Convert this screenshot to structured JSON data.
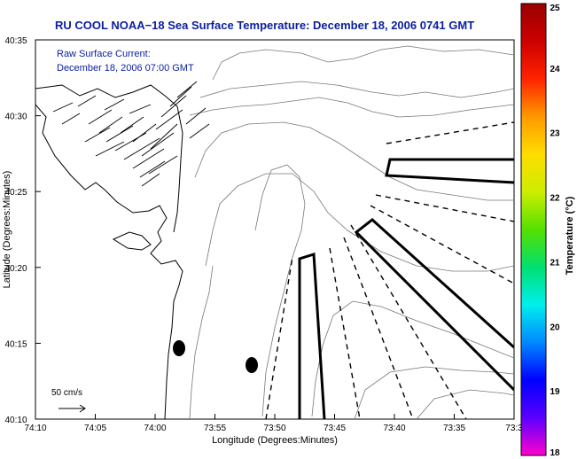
{
  "title": "RU COOL  NOAA−18  Sea Surface Temperature:  December 18, 2006 0741 GMT",
  "overlay": {
    "line1": "Raw Surface Current:",
    "line2": "December 18, 2006 07:00 GMT",
    "color": "#0a1ea0"
  },
  "axes": {
    "xlabel": "Longitude (Degrees:Minutes)",
    "ylabel": "Latitude (Degrees:Minutes)",
    "xticks": [
      "74:10",
      "74:05",
      "74:00",
      "73:55",
      "73:50",
      "73:45",
      "73:40",
      "73:35",
      "73:3"
    ],
    "yticks": [
      "40:35",
      "40:30",
      "40:25",
      "40:20",
      "40:15",
      "40:10"
    ]
  },
  "scale": {
    "label": "50 cm/s"
  },
  "colorbar": {
    "label": "Temperature (°C)",
    "ticks": [
      "25",
      "24",
      "23",
      "22",
      "21",
      "20",
      "19",
      "18"
    ],
    "min": 18,
    "max": 25,
    "colors": [
      "#ff00cc",
      "#5a00ff",
      "#0000ff",
      "#0088ff",
      "#00eeee",
      "#00e070",
      "#55e000",
      "#ccee00",
      "#ffdd00",
      "#ff9900",
      "#ff2200",
      "#cc0000",
      "#990000"
    ]
  }
}
